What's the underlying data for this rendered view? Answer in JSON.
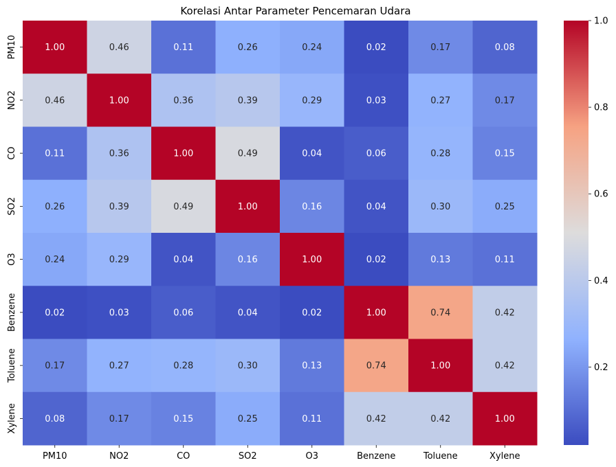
{
  "chart_data": {
    "type": "heatmap",
    "title": "Korelasi Antar Parameter Pencemaran Udara",
    "xlabel": "",
    "ylabel": "",
    "x_categories": [
      "PM10",
      "NO2",
      "CO",
      "SO2",
      "O3",
      "Benzene",
      "Toluene",
      "Xylene"
    ],
    "y_categories": [
      "PM10",
      "NO2",
      "CO",
      "SO2",
      "O3",
      "Benzene",
      "Toluene",
      "Xylene"
    ],
    "values": [
      [
        1.0,
        0.46,
        0.11,
        0.26,
        0.24,
        0.02,
        0.17,
        0.08
      ],
      [
        0.46,
        1.0,
        0.36,
        0.39,
        0.29,
        0.03,
        0.27,
        0.17
      ],
      [
        0.11,
        0.36,
        1.0,
        0.49,
        0.04,
        0.06,
        0.28,
        0.15
      ],
      [
        0.26,
        0.39,
        0.49,
        1.0,
        0.16,
        0.04,
        0.3,
        0.25
      ],
      [
        0.24,
        0.29,
        0.04,
        0.16,
        1.0,
        0.02,
        0.13,
        0.11
      ],
      [
        0.02,
        0.03,
        0.06,
        0.04,
        0.02,
        1.0,
        0.74,
        0.42
      ],
      [
        0.17,
        0.27,
        0.28,
        0.3,
        0.13,
        0.74,
        1.0,
        0.42
      ],
      [
        0.08,
        0.17,
        0.15,
        0.25,
        0.11,
        0.42,
        0.42,
        1.0
      ]
    ],
    "colormap": "coolwarm",
    "color_range": [
      0.02,
      1.0
    ],
    "colorbar_ticks": [
      0.2,
      0.4,
      0.6,
      0.8,
      1.0
    ],
    "annotation_format": "0.00"
  }
}
